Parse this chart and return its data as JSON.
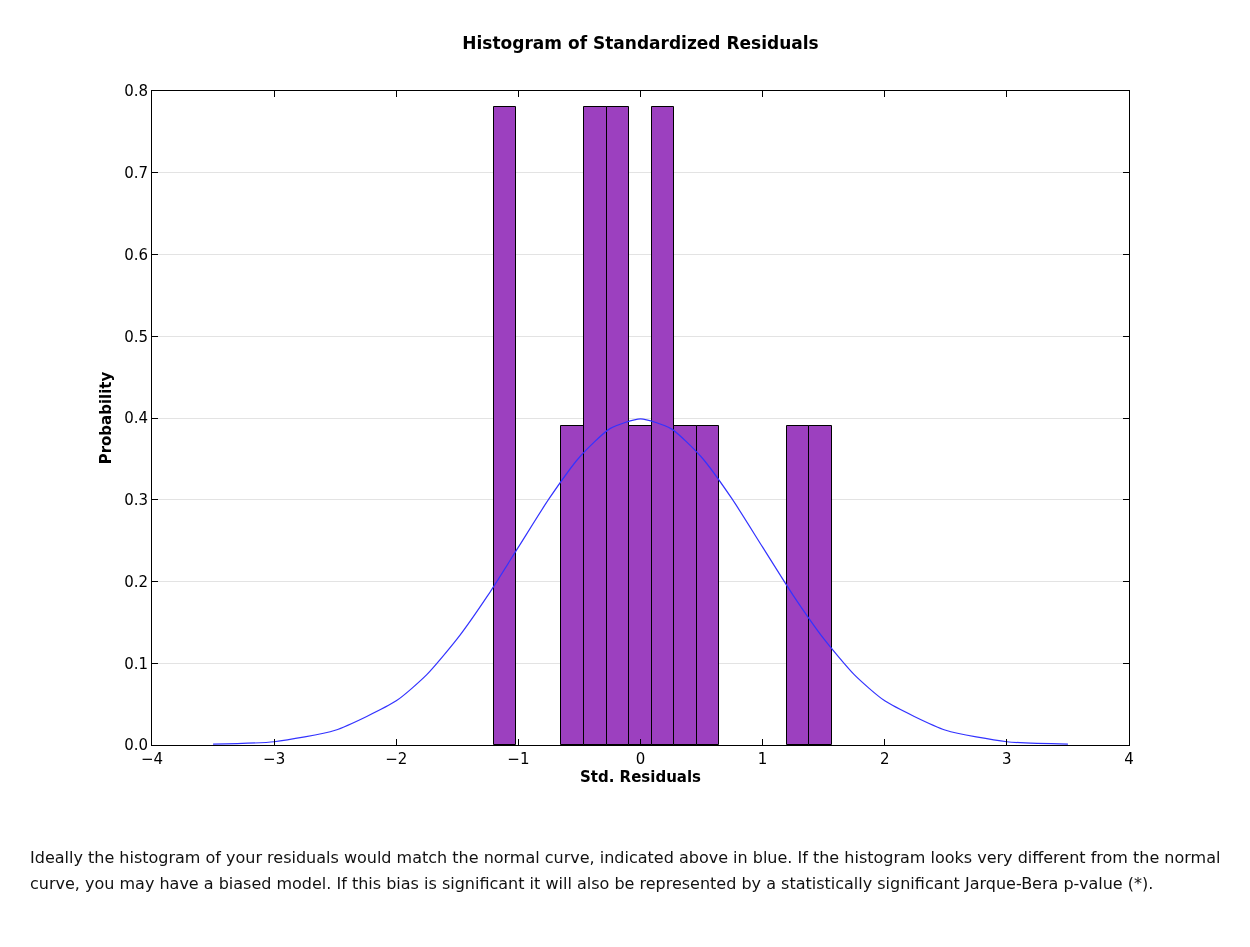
{
  "chart_data": {
    "type": "histogram",
    "title": "Histogram of Standardized Residuals",
    "xlabel": "Std. Residuals",
    "ylabel": "Probability",
    "bins": [
      -1.2,
      -1.016,
      -0.831,
      -0.647,
      -0.463,
      -0.278,
      -0.094,
      0.091,
      0.275,
      0.46,
      0.644,
      0.829,
      1.013,
      1.198,
      1.382,
      1.567
    ],
    "series": [
      {
        "type": "histogram",
        "color": "#9c40bf",
        "values": [
          0.78,
          0,
          0,
          0.39,
          0.78,
          0.78,
          0.39,
          0.78,
          0.39,
          0.39,
          0,
          0,
          0,
          0.39,
          0.39
        ]
      },
      {
        "type": "line",
        "color": "#3333ff",
        "x": [
          -3.5,
          -3,
          -2.5,
          -2,
          -1.75,
          -1.5,
          -1.25,
          -1,
          -0.75,
          -0.5,
          -0.25,
          0,
          0.25,
          0.5,
          0.75,
          1,
          1.25,
          1.5,
          1.75,
          2,
          2.5,
          3,
          3.5
        ],
        "values": [
          0.001,
          0.004,
          0.018,
          0.054,
          0.086,
          0.13,
          0.183,
          0.242,
          0.301,
          0.352,
          0.387,
          0.399,
          0.387,
          0.352,
          0.301,
          0.242,
          0.183,
          0.13,
          0.086,
          0.054,
          0.018,
          0.004,
          0.001
        ]
      }
    ],
    "xlim": [
      -4,
      4
    ],
    "xticks": [
      {
        "value": -4,
        "label": "−4"
      },
      {
        "value": -3,
        "label": "−3"
      },
      {
        "value": -2,
        "label": "−2"
      },
      {
        "value": -1,
        "label": "−1"
      },
      0,
      1,
      2,
      3,
      4
    ],
    "ylim": [
      0,
      0.8
    ],
    "yticks": [
      {
        "value": 0,
        "label": "0.0"
      },
      0.1,
      0.2,
      0.3,
      0.4,
      0.5,
      0.6,
      0.7,
      0.8
    ],
    "grid": "y",
    "annotations": [
      "Ideally the histogram of your residuals would match the normal curve, indicated above in blue. If the histogram looks very different from the normal curve, you may have a biased model. If this bias is significant it will also be represented by a statistically significant Jarque-Bera p-value (*)."
    ]
  }
}
